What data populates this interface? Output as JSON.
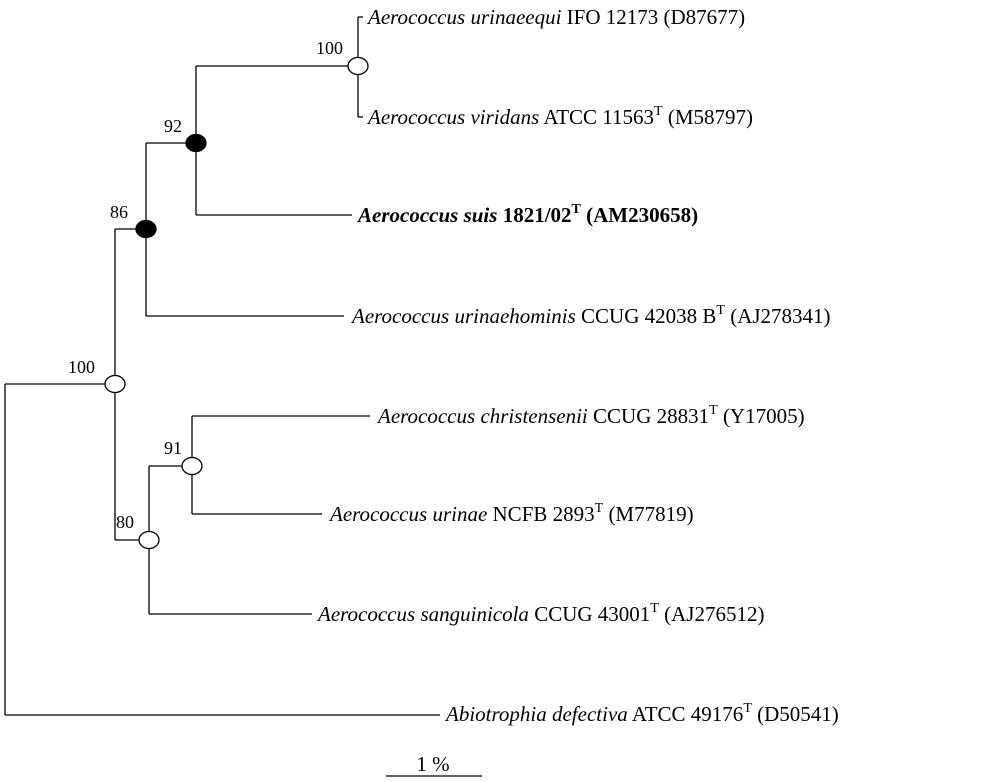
{
  "taxa": [
    {
      "id": "t1",
      "genus": "Aerococcus",
      "species": "urinaeequi",
      "strain": "IFO 12173",
      "type_mark": "",
      "accession": "(D87677)",
      "bold": false
    },
    {
      "id": "t2",
      "genus": "Aerococcus",
      "species": "viridans",
      "strain": "ATCC 11563",
      "type_mark": "T",
      "accession": "(M58797)",
      "bold": false
    },
    {
      "id": "t3",
      "genus": "Aerococcus",
      "species": "suis",
      "strain": "1821/02",
      "type_mark": "T",
      "accession": "(AM230658)",
      "bold": true
    },
    {
      "id": "t4",
      "genus": "Aerococcus",
      "species": "urinaehominis",
      "strain": "CCUG 42038 B",
      "type_mark": "T",
      "accession": "(AJ278341)",
      "bold": false
    },
    {
      "id": "t5",
      "genus": "Aerococcus",
      "species": "christensenii",
      "strain": "CCUG 28831",
      "type_mark": "T",
      "accession": "(Y17005)",
      "bold": false
    },
    {
      "id": "t6",
      "genus": "Aerococcus",
      "species": "urinae",
      "strain": "NCFB 2893",
      "type_mark": "T",
      "accession": "(M77819)",
      "bold": false
    },
    {
      "id": "t7",
      "genus": "Aerococcus",
      "species": "sanguinicola",
      "strain": "CCUG 43001",
      "type_mark": "T",
      "accession": "(AJ276512)",
      "bold": false
    },
    {
      "id": "t8",
      "genus": "Abiotrophia",
      "species": "defectiva",
      "strain": "ATCC 49176",
      "type_mark": "T",
      "accession": "(D50541)",
      "bold": false
    }
  ],
  "nodes": [
    {
      "id": "n-urinaeequi-viridans",
      "support": "100",
      "marker": "open"
    },
    {
      "id": "n-suis-clade",
      "support": "92",
      "marker": "filled"
    },
    {
      "id": "n-urinaehominis-clade",
      "support": "86",
      "marker": "filled"
    },
    {
      "id": "n-aerococcus-root",
      "support": "100",
      "marker": "open"
    },
    {
      "id": "n-christensenii-urinae",
      "support": "91",
      "marker": "open"
    },
    {
      "id": "n-sanguinicola-clade",
      "support": "80",
      "marker": "open"
    }
  ],
  "scale_bar": {
    "label": "1 %"
  }
}
